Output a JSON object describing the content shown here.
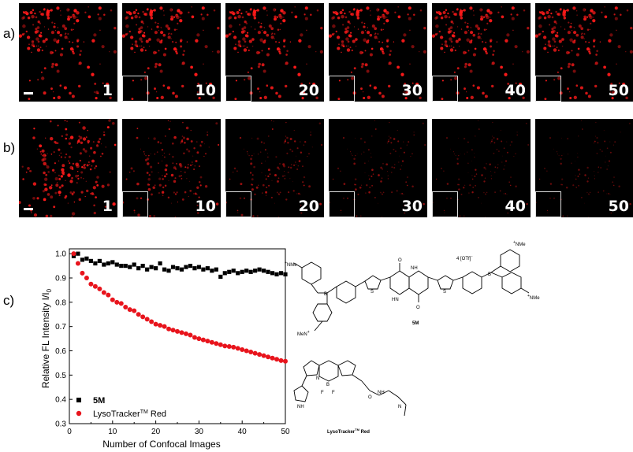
{
  "rows": [
    {
      "label": "a)",
      "frames": [
        "1",
        "10",
        "20",
        "30",
        "40",
        "50"
      ],
      "brightness": [
        1.0,
        1.0,
        1.0,
        1.0,
        0.98,
        0.96
      ]
    },
    {
      "label": "b)",
      "frames": [
        "1",
        "10",
        "20",
        "30",
        "40",
        "50"
      ],
      "brightness": [
        1.0,
        0.8,
        0.68,
        0.6,
        0.55,
        0.5
      ]
    }
  ],
  "colors": {
    "dot": "#ff1a1a",
    "series_5M": "#000000",
    "series_lyso": "#e8141c"
  },
  "chart_label": "c)",
  "chart_data": {
    "type": "scatter",
    "xlabel": "Number of Confocal Images",
    "ylabel": "Relative FL Intensity I/I",
    "ylabel_sub": "0",
    "xlim": [
      0,
      50
    ],
    "ylim": [
      0.3,
      1.02
    ],
    "xticks": [
      0,
      10,
      20,
      30,
      40,
      50
    ],
    "yticks": [
      0.3,
      0.4,
      0.5,
      0.6,
      0.7,
      0.8,
      0.9,
      1.0
    ],
    "ytick_labels": [
      "0.3",
      "0.4",
      "0.5",
      "0.6",
      "0.7",
      "0.8",
      "0.9",
      "1.0"
    ],
    "legend_position": "bottom-left",
    "series": [
      {
        "name": "5M",
        "marker": "square",
        "x": [
          1,
          2,
          3,
          4,
          5,
          6,
          7,
          8,
          9,
          10,
          11,
          12,
          13,
          14,
          15,
          16,
          17,
          18,
          19,
          20,
          21,
          22,
          23,
          24,
          25,
          26,
          27,
          28,
          29,
          30,
          31,
          32,
          33,
          34,
          35,
          36,
          37,
          38,
          39,
          40,
          41,
          42,
          43,
          44,
          45,
          46,
          47,
          48,
          49,
          50
        ],
        "y": [
          0.99,
          1.0,
          0.975,
          0.98,
          0.97,
          0.96,
          0.97,
          0.955,
          0.96,
          0.965,
          0.955,
          0.95,
          0.95,
          0.945,
          0.955,
          0.94,
          0.95,
          0.935,
          0.945,
          0.94,
          0.96,
          0.935,
          0.93,
          0.945,
          0.94,
          0.935,
          0.945,
          0.95,
          0.94,
          0.945,
          0.935,
          0.94,
          0.93,
          0.935,
          0.905,
          0.92,
          0.925,
          0.93,
          0.92,
          0.925,
          0.93,
          0.925,
          0.93,
          0.935,
          0.93,
          0.925,
          0.92,
          0.915,
          0.92,
          0.915
        ]
      },
      {
        "name": "LysoTracker",
        "name_sup": "TM",
        "name_suffix": " Red",
        "marker": "circle",
        "x": [
          1,
          2,
          3,
          4,
          5,
          6,
          7,
          8,
          9,
          10,
          11,
          12,
          13,
          14,
          15,
          16,
          17,
          18,
          19,
          20,
          21,
          22,
          23,
          24,
          25,
          26,
          27,
          28,
          29,
          30,
          31,
          32,
          33,
          34,
          35,
          36,
          37,
          38,
          39,
          40,
          41,
          42,
          43,
          44,
          45,
          46,
          47,
          48,
          49,
          50
        ],
        "y": [
          1.0,
          0.96,
          0.92,
          0.9,
          0.875,
          0.865,
          0.855,
          0.84,
          0.83,
          0.81,
          0.8,
          0.795,
          0.78,
          0.77,
          0.765,
          0.75,
          0.74,
          0.73,
          0.72,
          0.71,
          0.705,
          0.7,
          0.69,
          0.685,
          0.68,
          0.675,
          0.67,
          0.665,
          0.655,
          0.65,
          0.645,
          0.64,
          0.635,
          0.63,
          0.625,
          0.62,
          0.618,
          0.615,
          0.61,
          0.605,
          0.6,
          0.595,
          0.59,
          0.585,
          0.58,
          0.575,
          0.57,
          0.565,
          0.56,
          0.557
        ]
      }
    ]
  },
  "structures": {
    "label_5M": "5M",
    "label_lyso": "LysoTracker",
    "label_lyso_sup": "TM",
    "label_lyso_suffix": " Red",
    "counterion": "4 [OTf]",
    "counterion_sup": "−",
    "nme3": "NMe",
    "me3n": "Me",
    "plus": "+",
    "hn": "HN",
    "nh": "NH",
    "n": "N",
    "b": "B",
    "f": "F",
    "s": "S",
    "o": "O"
  }
}
